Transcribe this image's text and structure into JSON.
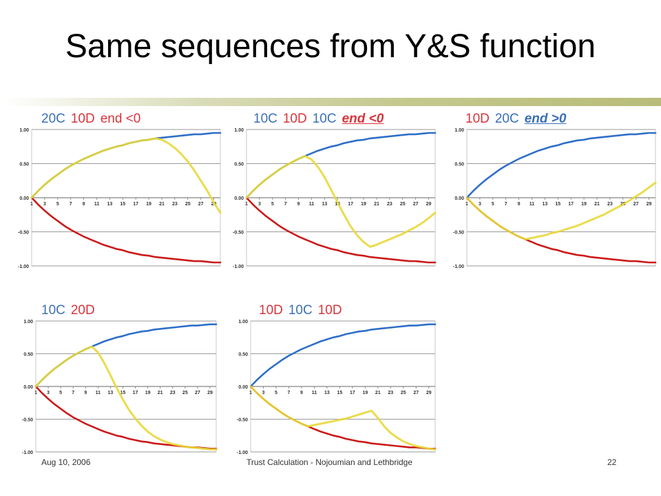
{
  "slide": {
    "title": "Same sequences from Y&S function",
    "footer_date": "Aug 10, 2006",
    "footer_center": "Trust Calculation - Nojoumian and Lethbridge",
    "page_number": "22",
    "colors": {
      "blue_label": "#3b6fb6",
      "red_label": "#d8343b",
      "series_blue": "#2f6fc8",
      "series_red": "#cc1a1a",
      "series_yellow": "#e8d83a"
    }
  },
  "chart_data": [
    {
      "type": "line",
      "label_parts": [
        {
          "text": "20C",
          "color": "blue",
          "style": "normal"
        },
        {
          "text": "10D",
          "color": "red",
          "style": "normal"
        },
        {
          "text": "end <0",
          "color": "red",
          "style": "normal"
        }
      ],
      "x": [
        1,
        2,
        3,
        4,
        5,
        6,
        7,
        8,
        9,
        10,
        11,
        12,
        13,
        14,
        15,
        16,
        17,
        18,
        19,
        20,
        21,
        22,
        23,
        24,
        25,
        26,
        27,
        28,
        29,
        30
      ],
      "x_ticks": [
        "1",
        "3",
        "5",
        "7",
        "9",
        "11",
        "13",
        "15",
        "17",
        "19",
        "21",
        "23",
        "25",
        "27",
        "29"
      ],
      "y_ticks": [
        "1.00",
        "0.50",
        "0.00",
        "-0.50",
        "-1.00"
      ],
      "ylim": [
        -1,
        1
      ],
      "grid": true,
      "series": [
        {
          "color": "blue",
          "values": [
            0.0,
            0.1,
            0.19,
            0.27,
            0.34,
            0.41,
            0.47,
            0.52,
            0.57,
            0.61,
            0.65,
            0.69,
            0.72,
            0.75,
            0.77,
            0.8,
            0.82,
            0.84,
            0.85,
            0.87,
            0.88,
            0.89,
            0.9,
            0.91,
            0.92,
            0.93,
            0.93,
            0.94,
            0.95,
            0.95
          ]
        },
        {
          "color": "red",
          "values": [
            0.0,
            -0.1,
            -0.19,
            -0.27,
            -0.34,
            -0.41,
            -0.47,
            -0.52,
            -0.57,
            -0.61,
            -0.65,
            -0.69,
            -0.72,
            -0.75,
            -0.77,
            -0.8,
            -0.82,
            -0.84,
            -0.85,
            -0.87,
            -0.88,
            -0.89,
            -0.9,
            -0.91,
            -0.92,
            -0.93,
            -0.93,
            -0.94,
            -0.95,
            -0.95
          ]
        },
        {
          "color": "yellow",
          "values": [
            0.0,
            0.1,
            0.19,
            0.27,
            0.34,
            0.41,
            0.47,
            0.52,
            0.57,
            0.61,
            0.65,
            0.69,
            0.72,
            0.75,
            0.77,
            0.8,
            0.82,
            0.84,
            0.85,
            0.87,
            0.85,
            0.8,
            0.73,
            0.64,
            0.53,
            0.4,
            0.25,
            0.1,
            -0.07,
            -0.22
          ]
        }
      ]
    },
    {
      "type": "line",
      "label_parts": [
        {
          "text": "10C",
          "color": "blue",
          "style": "normal"
        },
        {
          "text": "10D",
          "color": "red",
          "style": "normal"
        },
        {
          "text": "10C",
          "color": "blue",
          "style": "normal"
        },
        {
          "text": "end <0",
          "color": "red",
          "style": "emphasis"
        }
      ],
      "x": [
        1,
        2,
        3,
        4,
        5,
        6,
        7,
        8,
        9,
        10,
        11,
        12,
        13,
        14,
        15,
        16,
        17,
        18,
        19,
        20,
        21,
        22,
        23,
        24,
        25,
        26,
        27,
        28,
        29,
        30
      ],
      "x_ticks": [
        "1",
        "3",
        "5",
        "7",
        "9",
        "11",
        "13",
        "15",
        "17",
        "19",
        "21",
        "23",
        "25",
        "27",
        "29"
      ],
      "y_ticks": [
        "1.00",
        "0.50",
        "0.00",
        "-0.50",
        "-1.00"
      ],
      "ylim": [
        -1,
        1
      ],
      "grid": true,
      "series": [
        {
          "color": "blue",
          "values": [
            0.0,
            0.1,
            0.19,
            0.27,
            0.34,
            0.41,
            0.47,
            0.52,
            0.57,
            0.61,
            0.65,
            0.69,
            0.72,
            0.75,
            0.77,
            0.8,
            0.82,
            0.84,
            0.85,
            0.87,
            0.88,
            0.89,
            0.9,
            0.91,
            0.92,
            0.93,
            0.93,
            0.94,
            0.95,
            0.95
          ]
        },
        {
          "color": "red",
          "values": [
            0.0,
            -0.1,
            -0.19,
            -0.27,
            -0.34,
            -0.41,
            -0.47,
            -0.52,
            -0.57,
            -0.61,
            -0.65,
            -0.69,
            -0.72,
            -0.75,
            -0.77,
            -0.8,
            -0.82,
            -0.84,
            -0.85,
            -0.87,
            -0.88,
            -0.89,
            -0.9,
            -0.91,
            -0.92,
            -0.93,
            -0.93,
            -0.94,
            -0.95,
            -0.95
          ]
        },
        {
          "color": "yellow",
          "values": [
            0.0,
            0.1,
            0.19,
            0.27,
            0.34,
            0.41,
            0.47,
            0.52,
            0.57,
            0.61,
            0.56,
            0.45,
            0.3,
            0.12,
            -0.07,
            -0.25,
            -0.42,
            -0.55,
            -0.65,
            -0.72,
            -0.69,
            -0.65,
            -0.61,
            -0.57,
            -0.53,
            -0.48,
            -0.43,
            -0.37,
            -0.3,
            -0.22
          ]
        }
      ]
    },
    {
      "type": "line",
      "label_parts": [
        {
          "text": "10D",
          "color": "red",
          "style": "normal"
        },
        {
          "text": "20C",
          "color": "blue",
          "style": "normal"
        },
        {
          "text": "end >0",
          "color": "blue",
          "style": "emphasis"
        }
      ],
      "x": [
        1,
        2,
        3,
        4,
        5,
        6,
        7,
        8,
        9,
        10,
        11,
        12,
        13,
        14,
        15,
        16,
        17,
        18,
        19,
        20,
        21,
        22,
        23,
        24,
        25,
        26,
        27,
        28,
        29,
        30
      ],
      "x_ticks": [
        "1",
        "3",
        "5",
        "7",
        "9",
        "11",
        "13",
        "15",
        "17",
        "19",
        "21",
        "23",
        "25",
        "27",
        "29"
      ],
      "y_ticks": [
        "1.00",
        "0.50",
        "0.00",
        "-0.50",
        "-1.00"
      ],
      "ylim": [
        -1,
        1
      ],
      "grid": true,
      "series": [
        {
          "color": "blue",
          "values": [
            0.0,
            0.1,
            0.19,
            0.27,
            0.34,
            0.41,
            0.47,
            0.52,
            0.57,
            0.61,
            0.65,
            0.69,
            0.72,
            0.75,
            0.77,
            0.8,
            0.82,
            0.84,
            0.85,
            0.87,
            0.88,
            0.89,
            0.9,
            0.91,
            0.92,
            0.93,
            0.93,
            0.94,
            0.95,
            0.95
          ]
        },
        {
          "color": "red",
          "values": [
            0.0,
            -0.1,
            -0.19,
            -0.27,
            -0.34,
            -0.41,
            -0.47,
            -0.52,
            -0.57,
            -0.61,
            -0.65,
            -0.69,
            -0.72,
            -0.75,
            -0.77,
            -0.8,
            -0.82,
            -0.84,
            -0.85,
            -0.87,
            -0.88,
            -0.89,
            -0.9,
            -0.91,
            -0.92,
            -0.93,
            -0.93,
            -0.94,
            -0.95,
            -0.95
          ]
        },
        {
          "color": "yellow",
          "values": [
            0.0,
            -0.1,
            -0.19,
            -0.27,
            -0.34,
            -0.41,
            -0.47,
            -0.52,
            -0.57,
            -0.61,
            -0.59,
            -0.57,
            -0.55,
            -0.52,
            -0.5,
            -0.47,
            -0.44,
            -0.41,
            -0.37,
            -0.33,
            -0.29,
            -0.25,
            -0.2,
            -0.15,
            -0.1,
            -0.04,
            0.02,
            0.08,
            0.15,
            0.22
          ]
        }
      ]
    },
    {
      "type": "line",
      "label_parts": [
        {
          "text": "10C",
          "color": "blue",
          "style": "normal"
        },
        {
          "text": "20D",
          "color": "red",
          "style": "normal"
        }
      ],
      "x": [
        1,
        2,
        3,
        4,
        5,
        6,
        7,
        8,
        9,
        10,
        11,
        12,
        13,
        14,
        15,
        16,
        17,
        18,
        19,
        20,
        21,
        22,
        23,
        24,
        25,
        26,
        27,
        28,
        29,
        30
      ],
      "x_ticks": [
        "1",
        "3",
        "5",
        "7",
        "9",
        "11",
        "13",
        "15",
        "17",
        "19",
        "21",
        "23",
        "25",
        "27",
        "29"
      ],
      "y_ticks": [
        "1.00",
        "0.50",
        "0.00",
        "-0.50",
        "-1.00"
      ],
      "ylim": [
        -1,
        1
      ],
      "grid": true,
      "series": [
        {
          "color": "blue",
          "values": [
            0.0,
            0.1,
            0.19,
            0.27,
            0.34,
            0.41,
            0.47,
            0.52,
            0.57,
            0.61,
            0.65,
            0.69,
            0.72,
            0.75,
            0.77,
            0.8,
            0.82,
            0.84,
            0.85,
            0.87,
            0.88,
            0.89,
            0.9,
            0.91,
            0.92,
            0.93,
            0.93,
            0.94,
            0.95,
            0.95
          ]
        },
        {
          "color": "red",
          "values": [
            0.0,
            -0.1,
            -0.19,
            -0.27,
            -0.34,
            -0.41,
            -0.47,
            -0.52,
            -0.57,
            -0.61,
            -0.65,
            -0.69,
            -0.72,
            -0.75,
            -0.77,
            -0.8,
            -0.82,
            -0.84,
            -0.85,
            -0.87,
            -0.88,
            -0.89,
            -0.9,
            -0.91,
            -0.92,
            -0.93,
            -0.93,
            -0.94,
            -0.95,
            -0.95
          ]
        },
        {
          "color": "yellow",
          "values": [
            0.0,
            0.1,
            0.19,
            0.27,
            0.34,
            0.41,
            0.47,
            0.52,
            0.57,
            0.61,
            0.52,
            0.36,
            0.17,
            -0.02,
            -0.2,
            -0.36,
            -0.49,
            -0.6,
            -0.69,
            -0.76,
            -0.81,
            -0.85,
            -0.88,
            -0.9,
            -0.92,
            -0.93,
            -0.94,
            -0.95,
            -0.96,
            -0.96
          ]
        }
      ]
    },
    {
      "type": "line",
      "label_parts": [
        {
          "text": "10D",
          "color": "red",
          "style": "normal"
        },
        {
          "text": "10C",
          "color": "blue",
          "style": "normal"
        },
        {
          "text": "10D",
          "color": "red",
          "style": "normal"
        }
      ],
      "x": [
        1,
        2,
        3,
        4,
        5,
        6,
        7,
        8,
        9,
        10,
        11,
        12,
        13,
        14,
        15,
        16,
        17,
        18,
        19,
        20,
        21,
        22,
        23,
        24,
        25,
        26,
        27,
        28,
        29,
        30
      ],
      "x_ticks": [
        "1",
        "3",
        "5",
        "7",
        "9",
        "11",
        "13",
        "15",
        "17",
        "19",
        "21",
        "23",
        "25",
        "27",
        "29"
      ],
      "y_ticks": [
        "1.00",
        "0.50",
        "0.00",
        "-0.50",
        "-1.00"
      ],
      "ylim": [
        -1,
        1
      ],
      "grid": true,
      "series": [
        {
          "color": "blue",
          "values": [
            0.0,
            0.1,
            0.19,
            0.27,
            0.34,
            0.41,
            0.47,
            0.52,
            0.57,
            0.61,
            0.65,
            0.69,
            0.72,
            0.75,
            0.77,
            0.8,
            0.82,
            0.84,
            0.85,
            0.87,
            0.88,
            0.89,
            0.9,
            0.91,
            0.92,
            0.93,
            0.93,
            0.94,
            0.95,
            0.95
          ]
        },
        {
          "color": "red",
          "values": [
            0.0,
            -0.1,
            -0.19,
            -0.27,
            -0.34,
            -0.41,
            -0.47,
            -0.52,
            -0.57,
            -0.61,
            -0.65,
            -0.69,
            -0.72,
            -0.75,
            -0.77,
            -0.8,
            -0.82,
            -0.84,
            -0.85,
            -0.87,
            -0.88,
            -0.89,
            -0.9,
            -0.91,
            -0.92,
            -0.93,
            -0.93,
            -0.94,
            -0.95,
            -0.95
          ]
        },
        {
          "color": "yellow",
          "values": [
            0.0,
            -0.1,
            -0.19,
            -0.27,
            -0.34,
            -0.41,
            -0.47,
            -0.52,
            -0.57,
            -0.61,
            -0.59,
            -0.57,
            -0.55,
            -0.53,
            -0.51,
            -0.49,
            -0.46,
            -0.43,
            -0.4,
            -0.37,
            -0.48,
            -0.61,
            -0.71,
            -0.78,
            -0.84,
            -0.88,
            -0.91,
            -0.93,
            -0.95,
            -0.96
          ]
        }
      ]
    }
  ]
}
